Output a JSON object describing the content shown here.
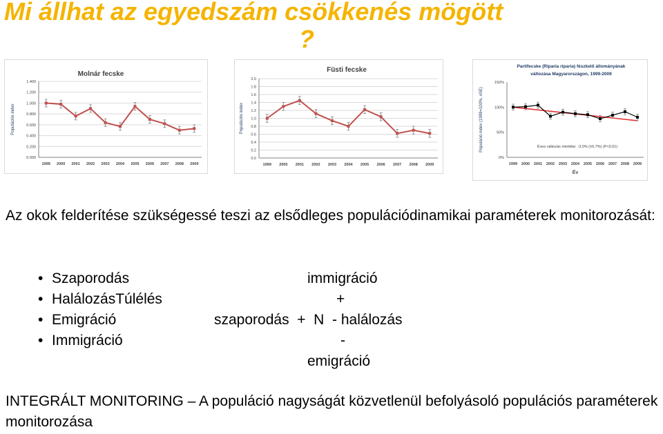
{
  "title_main": "Mi állhat az egyedszám csökkenés mögött",
  "title_question_mark": "?",
  "chart_data": [
    {
      "type": "line",
      "title": "Molnár fecske",
      "ylabel": "Populációs index",
      "x": [
        "1999",
        "2000",
        "2001",
        "2002",
        "2003",
        "2004",
        "2005",
        "2006",
        "2007",
        "2008",
        "2009"
      ],
      "values": [
        1.0,
        0.98,
        0.76,
        0.9,
        0.64,
        0.57,
        0.94,
        0.7,
        0.62,
        0.5,
        0.53
      ],
      "ylim": [
        0.0,
        1.4
      ],
      "yticks": [
        "0.000",
        "0.200",
        "0.400",
        "0.600",
        "0.800",
        "1.000",
        "1.200",
        "1.400"
      ],
      "grid": true,
      "color": "#c0504d"
    },
    {
      "type": "line",
      "title": "Füsti fecske",
      "ylabel": "Populációs index",
      "x": [
        "1999",
        "2000",
        "2001",
        "2002",
        "2003",
        "2004",
        "2005",
        "2006",
        "2007",
        "2008",
        "2009"
      ],
      "values": [
        1.0,
        1.3,
        1.45,
        1.12,
        0.94,
        0.8,
        1.22,
        1.04,
        0.62,
        0.7,
        0.62
      ],
      "ylim": [
        0.0,
        2.0
      ],
      "yticks": [
        "0.0",
        "0.2",
        "0.4",
        "0.6",
        "0.8",
        "1.0",
        "1.2",
        "1.4",
        "1.6",
        "1.8",
        "2.0"
      ],
      "grid": true,
      "color": "#c0504d"
    },
    {
      "type": "line",
      "title": "Partifecske (Riparia riparia) fészkelő állományának változása Magyarországon, 1999-2009",
      "ylabel": "Populáció index (1999=100%, ±SE)",
      "xlabel": "Év",
      "x": [
        "1999",
        "2000",
        "2001",
        "2002",
        "2003",
        "2004",
        "2005",
        "2006",
        "2007",
        "2008",
        "2009"
      ],
      "values": [
        100,
        101,
        104,
        82,
        90,
        87,
        85,
        77,
        84,
        91,
        80
      ],
      "ylim": [
        0,
        150
      ],
      "yticks": [
        "0%",
        "50%",
        "100%",
        "150%"
      ],
      "trend": [
        100,
        73
      ],
      "annotation": "Éves változás mértéke: -3,0% (±0,7%) (P<0.01)",
      "grid": false,
      "color": "#000000",
      "trend_color": "#e03030"
    }
  ],
  "intro": "Az okok felderítése szükségessé teszi az elsődleges populációdinamikai paraméterek monitorozását:",
  "bullets": [
    "Szaporodás",
    "HalálozásTúlélés",
    "Emigráció",
    "Immigráció"
  ],
  "equation": {
    "immigracio": "immigráció",
    "plus": "+",
    "main": "szaporodás  +  N  - halálozás",
    "minus": "-",
    "emigracio": "emigráció"
  },
  "bottom": "INTEGRÁLT MONITORING – A populáció nagyságát közvetlenül befolyásoló populációs paraméterek monitorozása"
}
